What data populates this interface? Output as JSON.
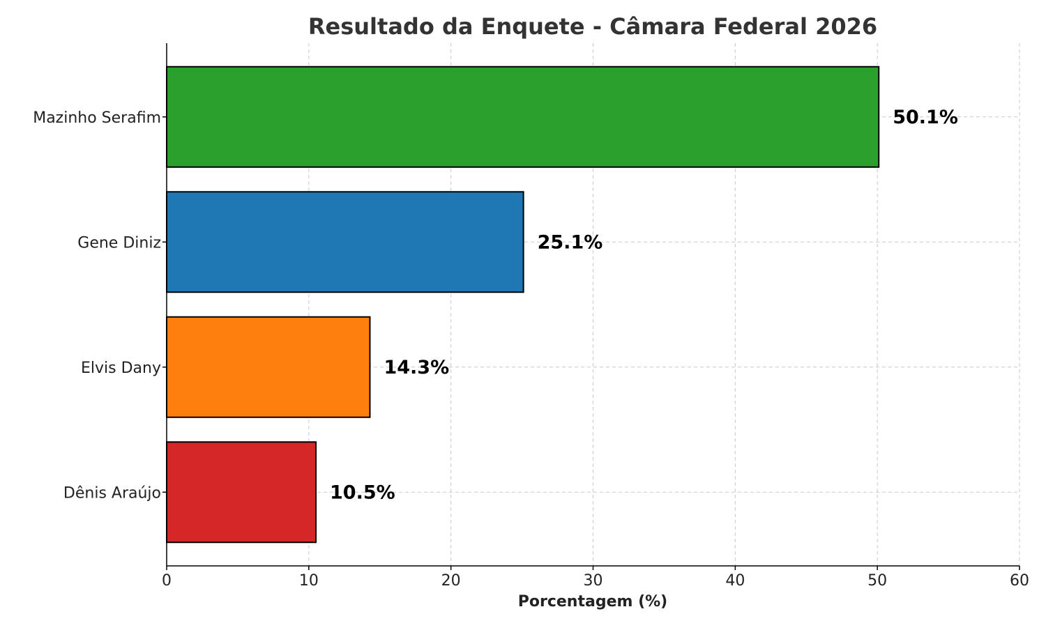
{
  "chart_data": {
    "type": "bar",
    "orientation": "horizontal",
    "title": "Resultado da Enquete - Câmara Federal 2026",
    "xlabel": "Porcentagem (%)",
    "ylabel": "",
    "xlim": [
      0,
      60
    ],
    "x_ticks": [
      0,
      10,
      20,
      30,
      40,
      50,
      60
    ],
    "grid": true,
    "categories": [
      "Mazinho Serafim",
      "Gene Diniz",
      "Elvis Dany",
      "Dênis Araújo"
    ],
    "values": [
      50.1,
      25.1,
      14.3,
      10.5
    ],
    "data_labels": [
      "50.1%",
      "25.1%",
      "14.3%",
      "10.5%"
    ],
    "colors": [
      "#2ca02c",
      "#1f77b4",
      "#ff7f0e",
      "#d62728"
    ]
  }
}
